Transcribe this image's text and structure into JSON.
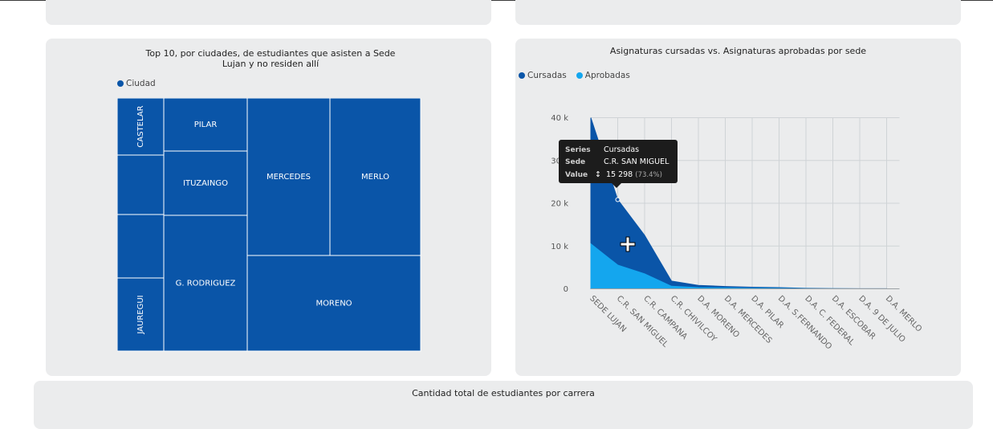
{
  "treemap_panel": {
    "title": "Top 10, por ciudades, de estudiantes que asisten a Sede Lujan y no residen allí",
    "legend_label": "Ciudad",
    "color": "#0a55a8"
  },
  "area_panel": {
    "title": "Asignaturas cursadas vs. Asignaturas aprobadas por sede",
    "tooltip": {
      "series_key": "Series",
      "series_value": "Cursadas",
      "sede_key": "Sede",
      "sede_value": "C.R. SAN MIGUEL",
      "value_key": "Value",
      "value_value": "15 298",
      "value_pct": "(73.4%)"
    }
  },
  "bottom_panel": {
    "title": "Cantidad total de estudiantes por carrera"
  },
  "chart_data": [
    {
      "type": "treemap",
      "title": "Top 10, por ciudades, de estudiantes que asisten a Sede Lujan y no residen allí",
      "legend": [
        "Ciudad"
      ],
      "categories": [
        "MORENO",
        "MERCEDES",
        "G. RODRIGUEZ",
        "MERLO",
        "ITUZAINGO",
        "PILAR",
        "JAUREGUI",
        "",
        "",
        "CASTELAR"
      ],
      "values": [
        339,
        309,
        287,
        259,
        95,
        82,
        64,
        56,
        52,
        50
      ],
      "color": "#0a55a8"
    },
    {
      "type": "area",
      "title": "Asignaturas cursadas vs. Asignaturas aprobadas por sede",
      "categories": [
        "SEDE LUJAN",
        "C.R. SAN MIGUEL",
        "C.R. CAMPANA",
        "C.R. CHIVILCOY",
        "D.A. MORENO",
        "D.A. MERCEDES",
        "D.A. PILAR",
        "D.A. S.FERNANDO",
        "D.A. C. FEDERAL",
        "D.A. ESCOBAR",
        "D.A. 9 DE JULIO",
        "D.A. MERLO"
      ],
      "series": [
        {
          "name": "Cursadas",
          "color": "#0a55a8",
          "values": [
            40000,
            20850,
            12500,
            1800,
            800,
            550,
            380,
            280,
            120,
            50,
            30,
            20
          ]
        },
        {
          "name": "Aprobadas",
          "color": "#14a6ee",
          "values": [
            10500,
            5550,
            3500,
            600,
            280,
            200,
            150,
            100,
            40,
            20,
            10,
            8
          ]
        }
      ],
      "y_ticks": [
        0,
        10000,
        20000,
        30000,
        40000
      ],
      "y_tick_labels": [
        "0",
        "10 k",
        "20 k",
        "30 k",
        "40 k"
      ],
      "ylim": [
        0,
        40000
      ],
      "grid": true,
      "legend_position": "top-left"
    }
  ]
}
